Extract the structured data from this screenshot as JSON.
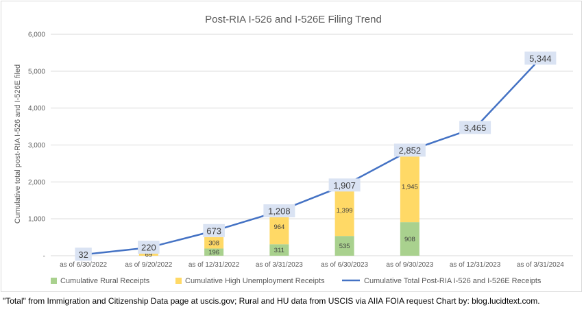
{
  "chart_data": {
    "type": "bar",
    "title": "Post-RIA I-526 and I-526E Filing Trend",
    "xlabel": "",
    "ylabel": "Cumulative total post-RIA I-526 and I-526E filed",
    "ylim": [
      0,
      6000
    ],
    "yticks": [
      "-",
      "1,000",
      "2,000",
      "3,000",
      "4,000",
      "5,000",
      "6,000"
    ],
    "grid": true,
    "legend_position": "bottom",
    "categories": [
      "as of 6/30/2022",
      "as of 9/20/2022",
      "as of 12/31/2022",
      "as of 3/31/2023",
      "as of 6/30/2023",
      "as of 9/30/2023",
      "as of 12/31/2023",
      "as of 3/31/2024"
    ],
    "series": [
      {
        "name": "Cumulative Rural Receipts",
        "kind": "bar",
        "color": "#a9d18e",
        "values": [
          null,
          null,
          196,
          311,
          535,
          908,
          null,
          null
        ],
        "labels": [
          "",
          "",
          "196",
          "311",
          "535",
          "908",
          "",
          ""
        ]
      },
      {
        "name": "Cumulative High Unemployment Receipts",
        "kind": "bar",
        "color": "#ffd966",
        "values": [
          null,
          69,
          308,
          964,
          1399,
          1945,
          null,
          null
        ],
        "labels": [
          "",
          "69",
          "308",
          "964",
          "1,399",
          "1,945",
          "",
          ""
        ]
      },
      {
        "name": "Cumulative Total Post-RIA I-526 and I-526E Receipts",
        "kind": "line",
        "color": "#4472c4",
        "values": [
          32,
          220,
          673,
          1208,
          1907,
          2852,
          3465,
          5344
        ],
        "labels": [
          "32",
          "220",
          "673",
          "1,208",
          "1,907",
          "2,852",
          "3,465",
          "5,344"
        ]
      }
    ]
  },
  "source_note": "\"Total\" from Immigration and Citizenship Data page at uscis.gov; Rural and HU data from USCIS via AIIA FOIA request Chart by: blog.lucidtext.com."
}
